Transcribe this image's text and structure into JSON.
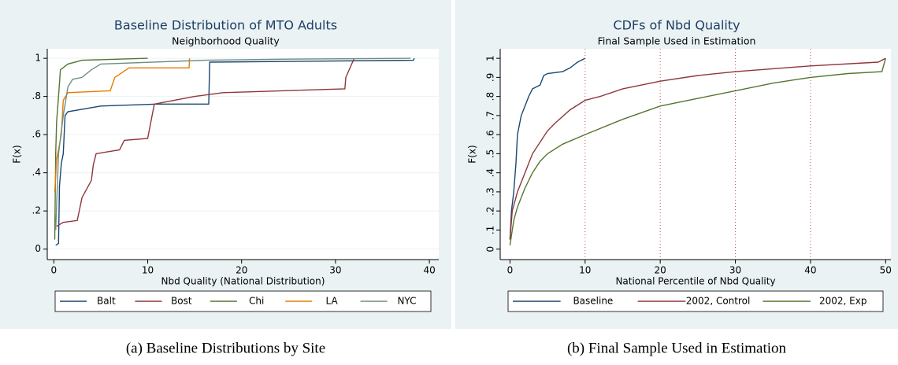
{
  "chart_data": [
    {
      "type": "line",
      "title": "Baseline Distribution of MTO Adults",
      "subtitle": "Neighborhood Quality",
      "x_label": "Nbd Quality (National Distribution)",
      "y_label": "F(x)",
      "caption": "(a) Baseline Distributions by Site",
      "xlim": [
        -0.7,
        41
      ],
      "ylim": [
        -0.055,
        1.05
      ],
      "xticks": [
        0,
        10,
        20,
        30,
        40
      ],
      "yticks": [
        0,
        {
          "value": 0.2,
          "label": ".2"
        },
        {
          "value": 0.4,
          "label": ".4"
        },
        {
          "value": 0.6,
          "label": ".6"
        },
        {
          "value": 0.8,
          "label": ".8"
        },
        1
      ],
      "grid": "y",
      "series": [
        {
          "name": "Balt",
          "color": "#1a476f",
          "x": [
            0.2,
            0.5,
            0.6,
            0.8,
            1,
            1.2,
            1.5,
            5,
            11,
            16.5,
            16.6,
            38.3,
            38.4
          ],
          "values": [
            0.02,
            0.03,
            0.33,
            0.45,
            0.5,
            0.7,
            0.72,
            0.75,
            0.76,
            0.76,
            0.98,
            0.99,
            1
          ]
        },
        {
          "name": "Bost",
          "color": "#90353b",
          "x": [
            0.3,
            1,
            2.5,
            3,
            4,
            4.2,
            4.5,
            7,
            7.5,
            10,
            10.7,
            15,
            18,
            31,
            31.1,
            32
          ],
          "values": [
            0.12,
            0.14,
            0.15,
            0.27,
            0.36,
            0.44,
            0.5,
            0.52,
            0.57,
            0.58,
            0.76,
            0.8,
            0.82,
            0.84,
            0.9,
            1
          ]
        },
        {
          "name": "Chi",
          "color": "#55752f",
          "x": [
            0.1,
            0.2,
            0.3,
            0.5,
            0.7,
            1.5,
            3,
            10
          ],
          "values": [
            0.05,
            0.5,
            0.67,
            0.8,
            0.94,
            0.97,
            0.99,
            1
          ]
        },
        {
          "name": "LA",
          "color": "#e37e00",
          "x": [
            0.1,
            0.3,
            0.8,
            1,
            1.5,
            6,
            6.5,
            8,
            14.4,
            14.45
          ],
          "values": [
            0.3,
            0.47,
            0.6,
            0.78,
            0.82,
            0.83,
            0.9,
            0.95,
            0.95,
            1
          ]
        },
        {
          "name": "NYC",
          "color": "#6e8e84",
          "x": [
            0.2,
            0.5,
            1,
            1.5,
            2,
            3,
            4,
            5,
            16,
            24,
            38
          ],
          "values": [
            0.1,
            0.5,
            0.7,
            0.85,
            0.89,
            0.9,
            0.94,
            0.97,
            0.99,
            0.995,
            1
          ]
        }
      ]
    },
    {
      "type": "line",
      "title": "CDFs of Nbd Quality",
      "subtitle": "Final Sample Used in Estimation",
      "x_label": "National Percentile of Nbd Quality",
      "y_label": "F(x)",
      "caption": "(b) Final Sample Used in Estimation",
      "xlim": [
        -1.3,
        50.7
      ],
      "ylim": [
        -0.055,
        1.05
      ],
      "xticks": [
        0,
        10,
        20,
        30,
        40,
        50
      ],
      "yticks": [
        0,
        {
          "value": 0.1,
          "label": ".1"
        },
        {
          "value": 0.2,
          "label": ".2"
        },
        {
          "value": 0.3,
          "label": ".3"
        },
        {
          "value": 0.4,
          "label": ".4"
        },
        {
          "value": 0.5,
          "label": ".5"
        },
        {
          "value": 0.6,
          "label": ".6"
        },
        {
          "value": 0.7,
          "label": ".7"
        },
        {
          "value": 0.8,
          "label": ".8"
        },
        {
          "value": 0.9,
          "label": ".9"
        },
        1
      ],
      "grid": "x",
      "series": [
        {
          "name": "Baseline",
          "color": "#1a476f",
          "x": [
            0,
            0.2,
            0.5,
            0.8,
            1,
            1.5,
            2,
            2.5,
            3,
            4,
            4.5,
            5,
            7,
            8,
            9,
            10
          ],
          "values": [
            0.05,
            0.2,
            0.3,
            0.45,
            0.6,
            0.7,
            0.75,
            0.8,
            0.84,
            0.86,
            0.91,
            0.92,
            0.93,
            0.95,
            0.98,
            1
          ]
        },
        {
          "name": "2002, Control",
          "color": "#90353b",
          "x": [
            0,
            0.3,
            1,
            2,
            3,
            4,
            5,
            6,
            8,
            10,
            12,
            15,
            20,
            25,
            30,
            40,
            49,
            50
          ],
          "values": [
            0.05,
            0.2,
            0.3,
            0.4,
            0.5,
            0.56,
            0.62,
            0.66,
            0.73,
            0.78,
            0.8,
            0.84,
            0.88,
            0.91,
            0.93,
            0.96,
            0.98,
            1
          ]
        },
        {
          "name": "2002, Exp",
          "color": "#55752f",
          "x": [
            0,
            0.5,
            1,
            2,
            3,
            4,
            5,
            7,
            10,
            15,
            20,
            25,
            30,
            35,
            40,
            45,
            49.5,
            50
          ],
          "values": [
            0.02,
            0.15,
            0.22,
            0.32,
            0.4,
            0.46,
            0.5,
            0.55,
            0.6,
            0.68,
            0.75,
            0.79,
            0.83,
            0.87,
            0.9,
            0.92,
            0.93,
            1
          ]
        }
      ]
    }
  ]
}
